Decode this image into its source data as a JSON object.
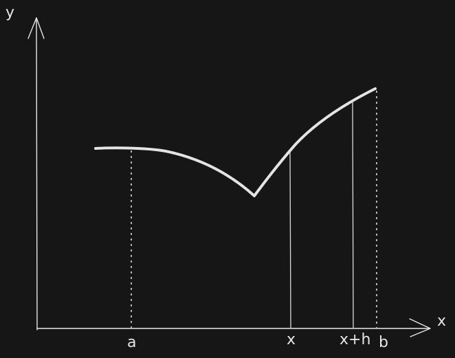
{
  "colors": {
    "background": "#161616",
    "stroke": "#e4e4e4"
  },
  "labels": {
    "y_axis": "y",
    "x_axis": "x",
    "a": "a",
    "x": "x",
    "x_plus_h": "x+h",
    "b": "b"
  }
}
